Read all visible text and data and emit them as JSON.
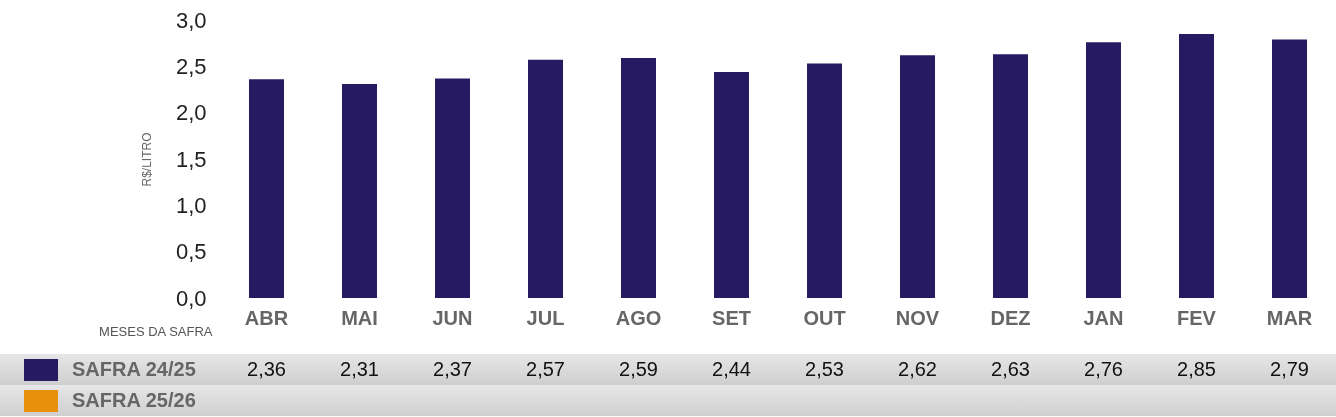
{
  "chart_data": {
    "type": "bar",
    "xlabel": "MESES DA SAFRA",
    "ylabel": "R$/LITRO",
    "categories": [
      "ABR",
      "MAI",
      "JUN",
      "JUL",
      "AGO",
      "SET",
      "OUT",
      "NOV",
      "DEZ",
      "JAN",
      "FEV",
      "MAR"
    ],
    "series": [
      {
        "name": "SAFRA 24/25",
        "color": "#261b63",
        "values": [
          2.36,
          2.31,
          2.37,
          2.57,
          2.59,
          2.44,
          2.53,
          2.62,
          2.63,
          2.76,
          2.85,
          2.79
        ],
        "value_labels": [
          "2,36",
          "2,31",
          "2,37",
          "2,57",
          "2,59",
          "2,44",
          "2,53",
          "2,62",
          "2,63",
          "2,76",
          "2,85",
          "2,79"
        ]
      },
      {
        "name": "SAFRA 25/26",
        "color": "#e8900c",
        "values": [
          null,
          null,
          null,
          null,
          null,
          null,
          null,
          null,
          null,
          null,
          null,
          null
        ]
      }
    ],
    "ylim": [
      0,
      3
    ],
    "yticks": [
      {
        "value": 0,
        "label": "0,0"
      },
      {
        "value": 0.5,
        "label": "0,5"
      },
      {
        "value": 1,
        "label": "1,0"
      },
      {
        "value": 1.5,
        "label": "1,5"
      },
      {
        "value": 2,
        "label": "2,0"
      },
      {
        "value": 2.5,
        "label": "2,5"
      },
      {
        "value": 3,
        "label": "3,0"
      }
    ],
    "legend": "bottom"
  }
}
